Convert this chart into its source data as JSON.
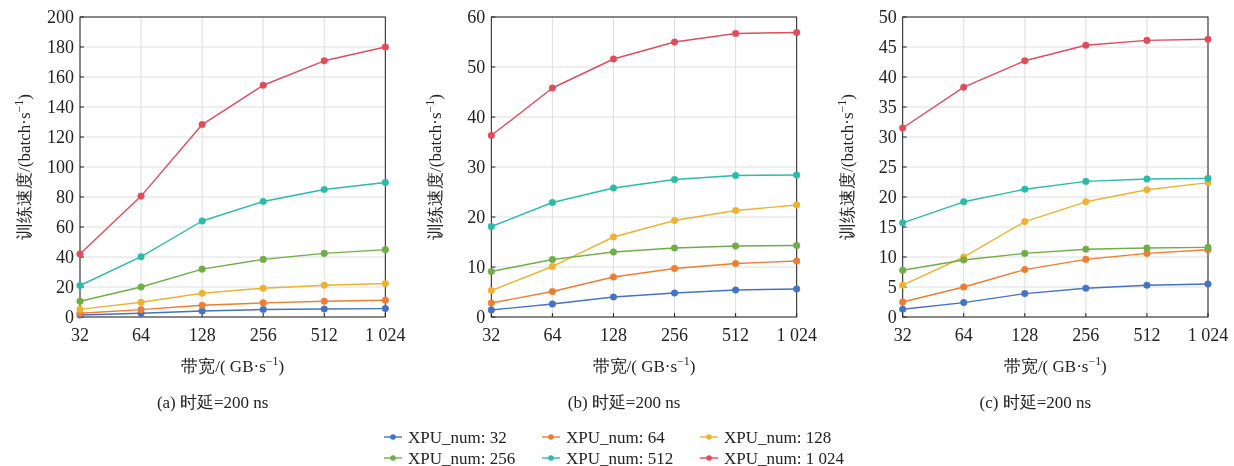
{
  "chart_data": [
    {
      "type": "line",
      "title": "(a)  时延=200 ns",
      "xlabel": "带宽/( GB·s$^{−1}$)",
      "ylabel": "训练速度/(batch·s$^{−1}$)",
      "categories": [
        "32",
        "64",
        "128",
        "256",
        "512",
        "1 024"
      ],
      "ylim": [
        0,
        200
      ],
      "yticks": [
        0,
        20,
        40,
        60,
        80,
        100,
        120,
        140,
        160,
        180,
        200
      ],
      "grid": true,
      "marker": "circle",
      "legend": "bottom",
      "series": [
        {
          "name": "XPU_num: 32",
          "color": "#4472c4",
          "values": [
            1.3,
            2.5,
            4,
            5,
            5.3,
            5.6
          ]
        },
        {
          "name": "XPU_num: 64",
          "color": "#ed7d31",
          "values": [
            2.5,
            4.9,
            7.8,
            9.4,
            10.5,
            11.2
          ]
        },
        {
          "name": "XPU_num: 128",
          "color": "#edb232",
          "values": [
            5.1,
            9.8,
            15.8,
            19.2,
            21.2,
            22.3
          ]
        },
        {
          "name": "XPU_num: 256",
          "color": "#70ad47",
          "values": [
            10.5,
            20,
            31.9,
            38.4,
            42.4,
            44.9
          ]
        },
        {
          "name": "XPU_num: 512",
          "color": "#2bbba8",
          "values": [
            21,
            40.2,
            64,
            77,
            85,
            89.7
          ]
        },
        {
          "name": "XPU_num: 1 024",
          "color": "#e04c5c",
          "values": [
            42,
            80.6,
            128.3,
            154.5,
            170.8,
            180
          ]
        }
      ]
    },
    {
      "type": "line",
      "title": "(b)  时延=200 ns",
      "xlabel": "带宽/( GB·s$^{−1}$)",
      "ylabel": "训练速度/(batch·s$^{−1}$)",
      "categories": [
        "32",
        "64",
        "128",
        "256",
        "512",
        "1 024"
      ],
      "ylim": [
        0,
        60
      ],
      "yticks": [
        0,
        10,
        20,
        30,
        40,
        50,
        60
      ],
      "grid": true,
      "marker": "circle",
      "series": [
        {
          "color": "#4472c4",
          "values": [
            1.4,
            2.6,
            4.0,
            4.8,
            5.4,
            5.6
          ]
        },
        {
          "color": "#ed7d31",
          "values": [
            2.8,
            5.1,
            8.0,
            9.7,
            10.7,
            11.2
          ]
        },
        {
          "color": "#edb232",
          "values": [
            5.3,
            10.1,
            16.0,
            19.3,
            21.3,
            22.4
          ]
        },
        {
          "color": "#70ad47",
          "values": [
            9.1,
            11.5,
            13.0,
            13.8,
            14.2,
            14.3
          ]
        },
        {
          "color": "#2bbba8",
          "values": [
            18.1,
            22.9,
            25.8,
            27.5,
            28.3,
            28.4
          ]
        },
        {
          "color": "#e04c5c",
          "values": [
            36.3,
            45.8,
            51.6,
            55.0,
            56.7,
            56.9
          ]
        }
      ]
    },
    {
      "type": "line",
      "title": "(c)  时延=200 ns",
      "xlabel": "带宽/( GB·s$^{−1}$)",
      "ylabel": "训练速度/(batch·s$^{−1}$)",
      "categories": [
        "32",
        "64",
        "128",
        "256",
        "512",
        "1 024"
      ],
      "ylim": [
        0,
        50
      ],
      "yticks": [
        0,
        5,
        10,
        15,
        20,
        25,
        30,
        35,
        40,
        45,
        50
      ],
      "grid": true,
      "marker": "circle",
      "series": [
        {
          "color": "#4472c4",
          "values": [
            1.3,
            2.4,
            3.9,
            4.8,
            5.3,
            5.5
          ]
        },
        {
          "color": "#ed7d31",
          "values": [
            2.5,
            5.0,
            7.9,
            9.6,
            10.6,
            11.2
          ]
        },
        {
          "color": "#edb232",
          "values": [
            5.3,
            10.0,
            15.9,
            19.2,
            21.2,
            22.4
          ]
        },
        {
          "color": "#70ad47",
          "values": [
            7.8,
            9.5,
            10.6,
            11.3,
            11.5,
            11.6
          ]
        },
        {
          "color": "#2bbba8",
          "values": [
            15.7,
            19.2,
            21.3,
            22.6,
            23.0,
            23.1
          ]
        },
        {
          "color": "#e04c5c",
          "values": [
            31.5,
            38.3,
            42.7,
            45.3,
            46.1,
            46.3
          ]
        }
      ]
    }
  ]
}
